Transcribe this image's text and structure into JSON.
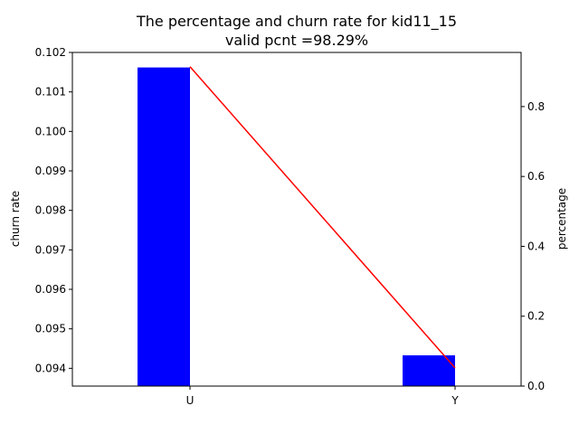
{
  "chart_data": {
    "type": "bar",
    "title_line1": "The percentage and churn rate for kid11_15",
    "title_line2": "valid pcnt =98.29%",
    "xlabel": "",
    "categories": [
      "U",
      "Y"
    ],
    "left_axis": {
      "label": "churn rate",
      "ylim": [
        0.09355,
        0.102
      ],
      "ticks": [
        "0.094",
        "0.095",
        "0.096",
        "0.097",
        "0.098",
        "0.099",
        "0.100",
        "0.101",
        "0.102"
      ],
      "tick_values": [
        0.094,
        0.095,
        0.096,
        0.097,
        0.098,
        0.099,
        0.1,
        0.101,
        0.102
      ]
    },
    "right_axis": {
      "label": "percentage",
      "ylim": [
        0.0,
        0.955
      ],
      "ticks": [
        "0.0",
        "0.2",
        "0.4",
        "0.6",
        "0.8"
      ],
      "tick_values": [
        0.0,
        0.2,
        0.4,
        0.6,
        0.8
      ]
    },
    "series": [
      {
        "kind": "bar",
        "axis": "right",
        "color": "#0000ff",
        "values": [
          0.912,
          0.088
        ]
      },
      {
        "kind": "line",
        "axis": "left",
        "color": "#ff0000",
        "values": [
          0.10164,
          0.09401
        ]
      }
    ]
  }
}
